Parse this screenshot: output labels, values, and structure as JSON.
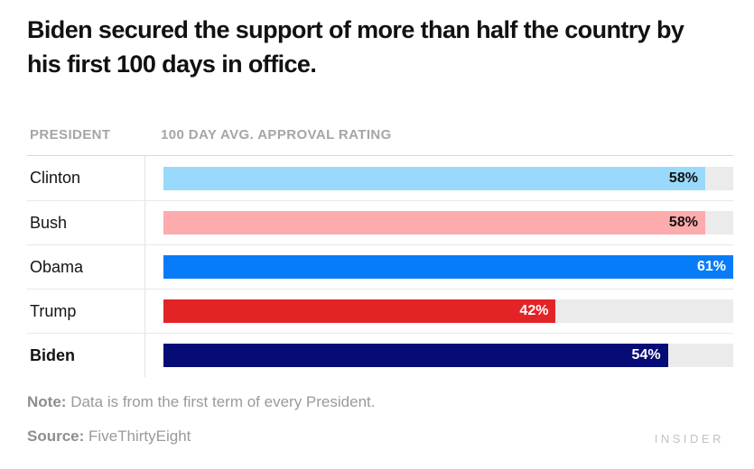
{
  "title": "Biden secured the support of more than half the country by his first 100 days in office.",
  "table": {
    "col1_header": "PRESIDENT",
    "col2_header": "100 DAY AVG. APPROVAL RATING"
  },
  "chart_data": {
    "type": "bar",
    "orientation": "horizontal",
    "title": "Biden secured the support of more than half the country by his first 100 days in office.",
    "col_headers": [
      "PRESIDENT",
      "100 DAY AVG. APPROVAL RATING"
    ],
    "categories": [
      "Clinton",
      "Bush",
      "Obama",
      "Trump",
      "Biden"
    ],
    "values": [
      58,
      58,
      61,
      42,
      54
    ],
    "value_labels": [
      "58%",
      "58%",
      "61%",
      "42%",
      "54%"
    ],
    "bar_colors": [
      "#99d9fb",
      "#fdabad",
      "#087cf8",
      "#e32427",
      "#070b75"
    ],
    "value_label_colors": [
      "#111111",
      "#111111",
      "#ffffff",
      "#ffffff",
      "#ffffff"
    ],
    "track_color": "#ebebeb",
    "xlim": [
      0,
      61
    ],
    "grid": false,
    "legend": false,
    "emphasized_category": "Biden",
    "unit": "%"
  },
  "footer": {
    "note_label": "Note:",
    "note_text": "Data is from the first term of every President.",
    "source_label": "Source:",
    "source_text": "FiveThirtyEight",
    "brand": "INSIDER"
  }
}
